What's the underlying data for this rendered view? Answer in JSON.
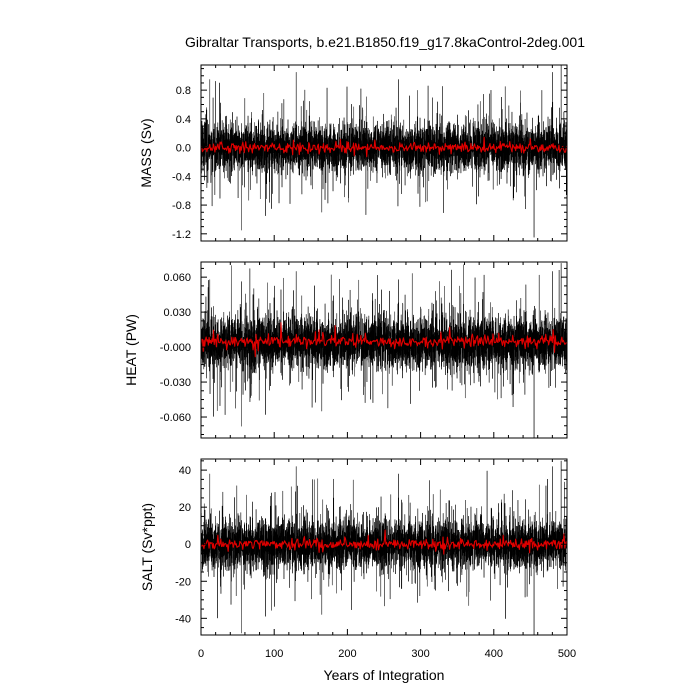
{
  "figure": {
    "title": "Gibraltar Transports, b.e21.B1850.f19_g17.8kaControl-2deg.001",
    "xlabel": "Years of Integration"
  },
  "chart_data": [
    {
      "type": "line",
      "ylabel": "MASS (Sv)",
      "xlim": [
        0,
        500
      ],
      "ylim": [
        -1.3,
        1.15
      ],
      "yticks": [
        -1.2,
        -0.8,
        -0.4,
        0.0,
        0.4,
        0.8
      ],
      "ytick_labels": [
        "-1.2",
        "-0.8",
        "-0.4",
        "0.0",
        "0.4",
        "0.8"
      ],
      "xticks": [
        0,
        100,
        200,
        300,
        400,
        500
      ],
      "xtick_labels": [
        "0",
        "100",
        "200",
        "300",
        "400",
        "500"
      ],
      "series": [
        {
          "kind": "monthly",
          "color": "#000000",
          "mean": 0.0,
          "std": 0.16,
          "extremes": [
            [
              12,
              0.95
            ],
            [
              55,
              -1.15
            ],
            [
              88,
              -0.95
            ],
            [
              130,
              1.05
            ],
            [
              165,
              -0.9
            ],
            [
              270,
              0.95
            ],
            [
              455,
              -1.25
            ],
            [
              480,
              1.05
            ],
            [
              492,
              1.2
            ]
          ]
        },
        {
          "kind": "annual",
          "color": "#e00000",
          "mean": 0.0,
          "std": 0.035
        }
      ]
    },
    {
      "type": "line",
      "ylabel": "HEAT (PW)",
      "xlim": [
        0,
        500
      ],
      "ylim": [
        -0.078,
        0.073
      ],
      "yticks": [
        -0.06,
        -0.03,
        0.0,
        0.03,
        0.06
      ],
      "ytick_labels": [
        "-0.060",
        "-0.030",
        "-0.000",
        "0.030",
        "0.060"
      ],
      "xticks": [
        0,
        100,
        200,
        300,
        400,
        500
      ],
      "xtick_labels": [
        "0",
        "100",
        "200",
        "300",
        "400",
        "500"
      ],
      "series": [
        {
          "kind": "monthly",
          "color": "#000000",
          "mean": 0.004,
          "std": 0.011,
          "extremes": [
            [
              12,
              0.058
            ],
            [
              55,
              -0.068
            ],
            [
              88,
              -0.058
            ],
            [
              130,
              0.065
            ],
            [
              165,
              -0.055
            ],
            [
              270,
              0.058
            ],
            [
              455,
              -0.078
            ],
            [
              480,
              0.065
            ],
            [
              492,
              0.072
            ]
          ]
        },
        {
          "kind": "annual",
          "color": "#e00000",
          "mean": 0.005,
          "std": 0.0025
        }
      ]
    },
    {
      "type": "line",
      "ylabel": "SALT (Sv*ppt)",
      "xlim": [
        0,
        500
      ],
      "ylim": [
        -49,
        46
      ],
      "yticks": [
        -40,
        -20,
        0,
        20,
        40
      ],
      "ytick_labels": [
        "-40",
        "-20",
        "0",
        "20",
        "40"
      ],
      "xticks": [
        0,
        100,
        200,
        300,
        400,
        500
      ],
      "xtick_labels": [
        "0",
        "100",
        "200",
        "300",
        "400",
        "500"
      ],
      "series": [
        {
          "kind": "monthly",
          "color": "#000000",
          "mean": 0.0,
          "std": 6.5,
          "extremes": [
            [
              12,
              38
            ],
            [
              55,
              -48
            ],
            [
              88,
              -39
            ],
            [
              130,
              42
            ],
            [
              165,
              -38
            ],
            [
              270,
              38
            ],
            [
              455,
              -49
            ],
            [
              480,
              42
            ],
            [
              492,
              45
            ]
          ]
        },
        {
          "kind": "annual",
          "color": "#e00000",
          "mean": 0.0,
          "std": 1.4
        }
      ]
    }
  ]
}
